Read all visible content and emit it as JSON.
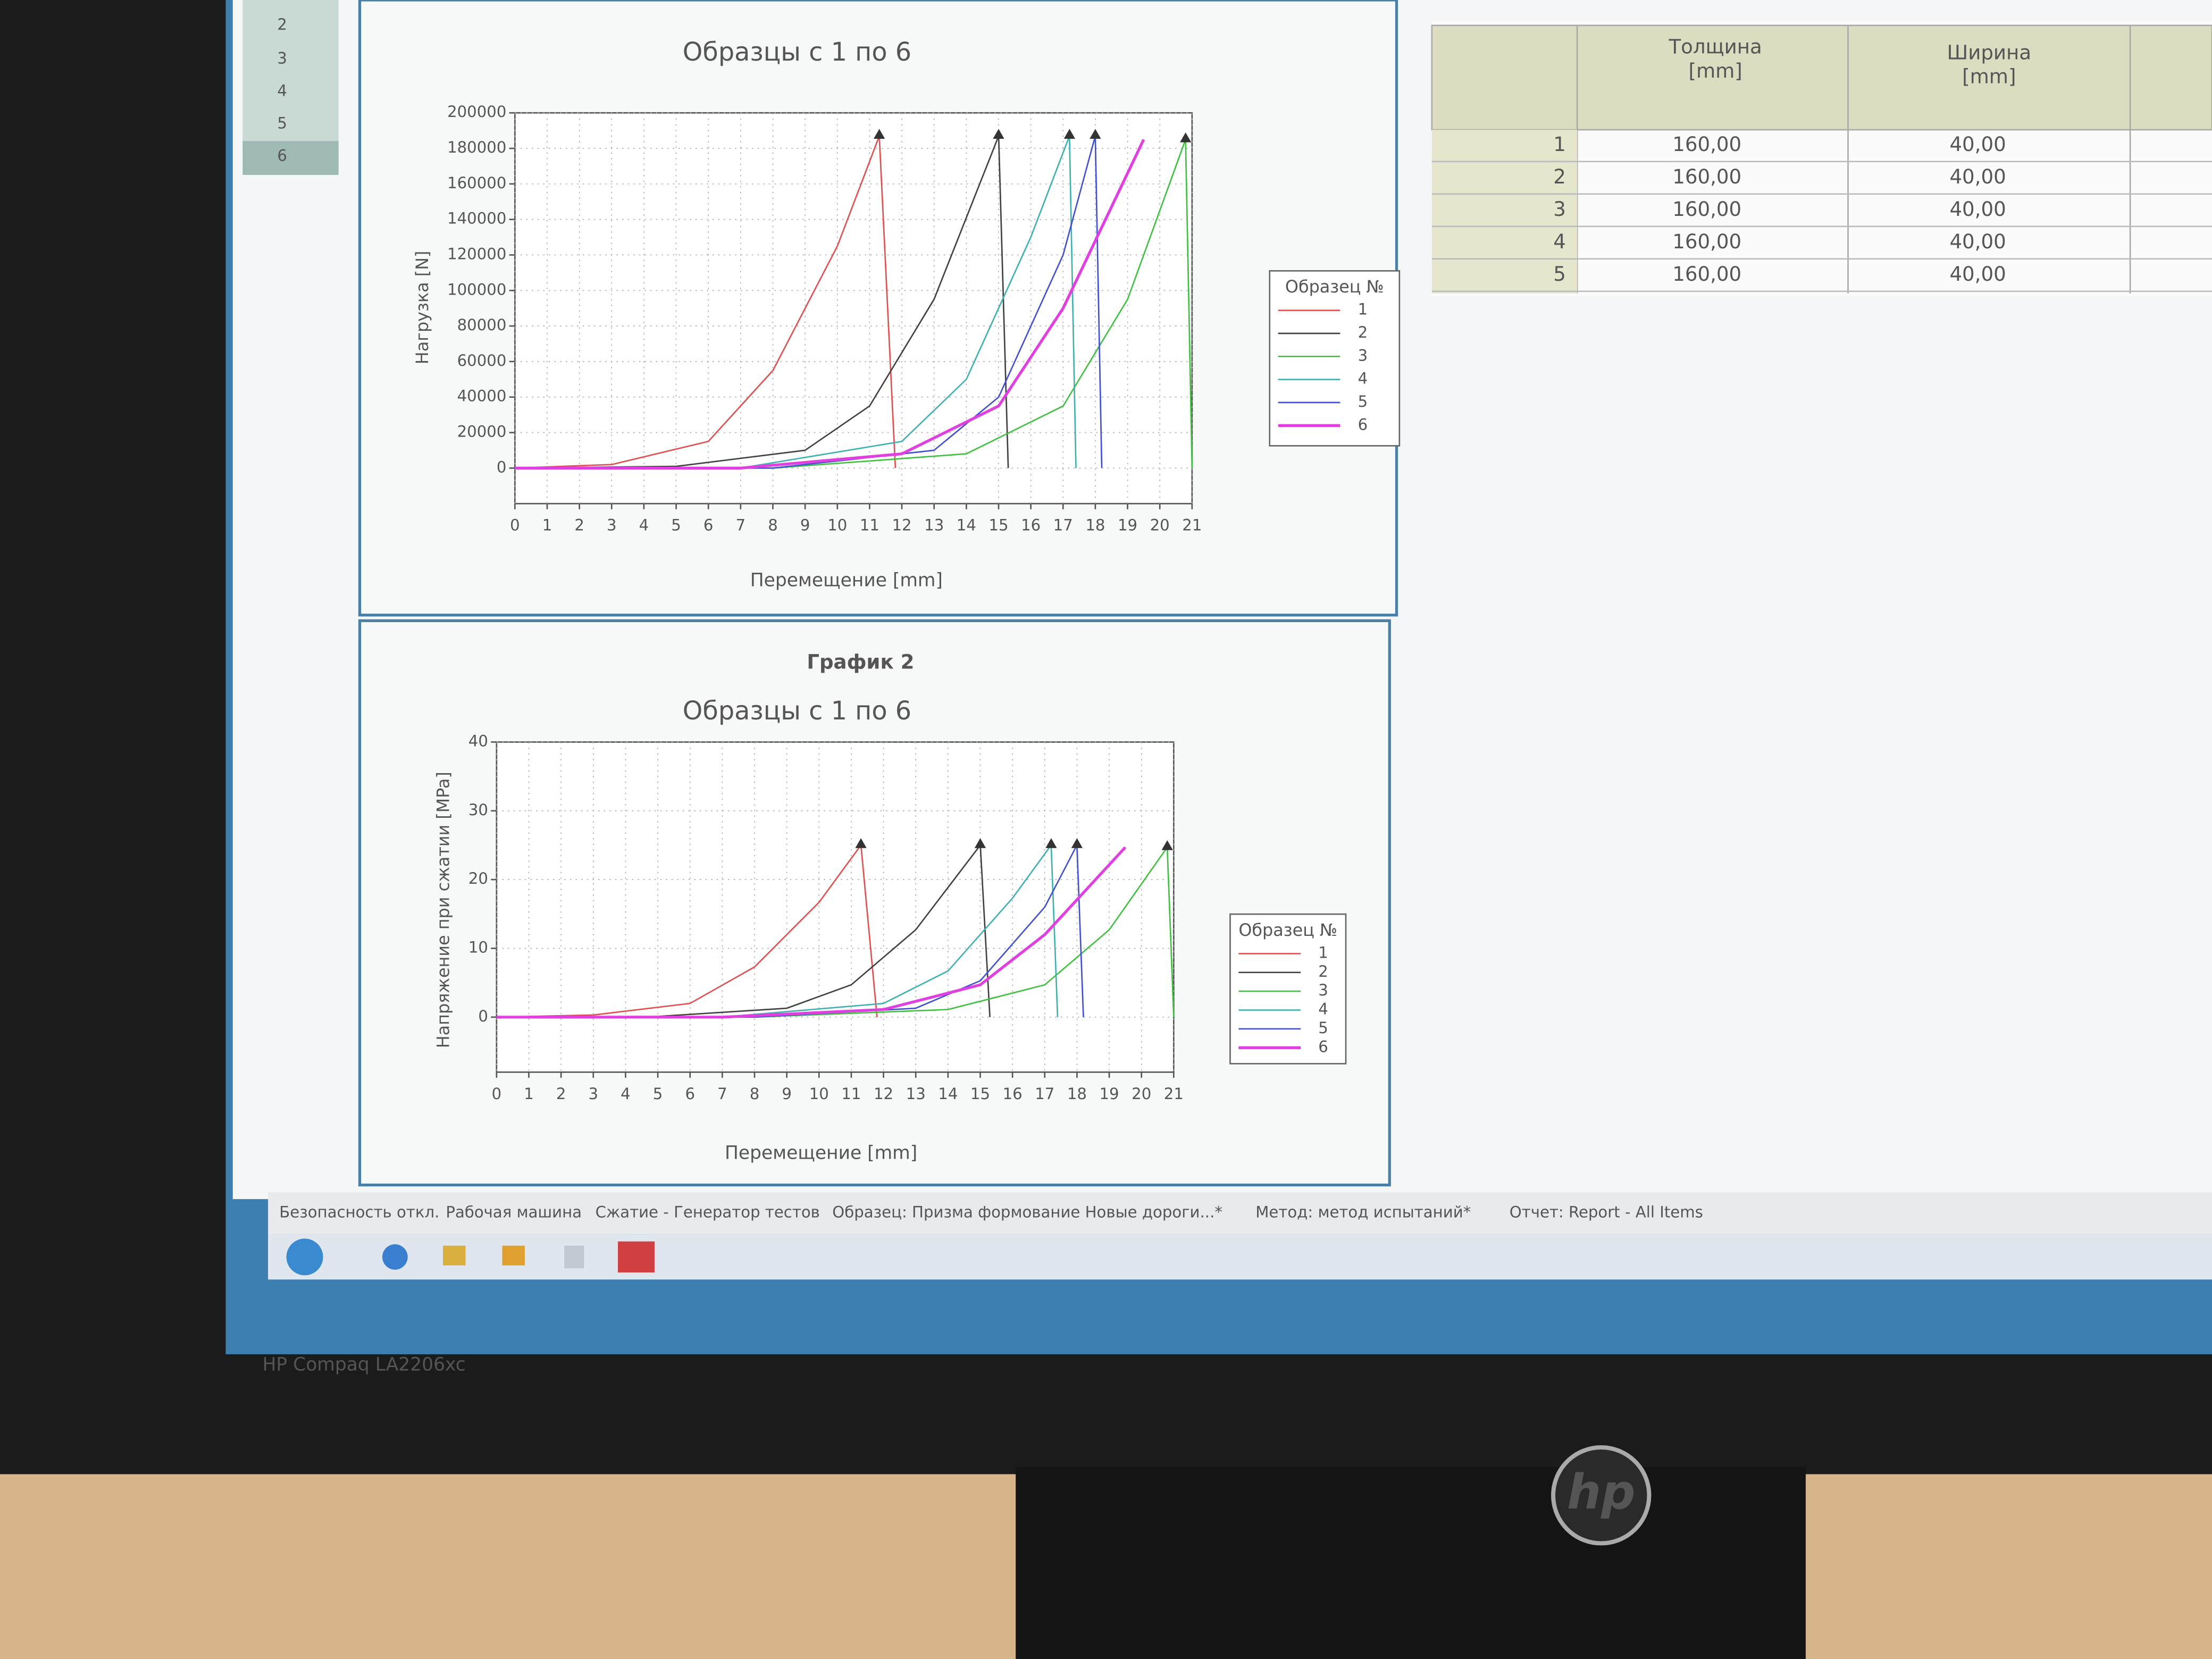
{
  "left_panel": {
    "rows": [
      "2",
      "3",
      "4",
      "5",
      "6"
    ]
  },
  "chart_data": [
    {
      "type": "line",
      "title": "Образцы с 1 по 6",
      "x_label": "Перемещение [mm]",
      "y_label": "Нагрузка [N]",
      "legend_title": "Образец №",
      "grid": true,
      "legend": "right",
      "xlim": [
        0,
        21
      ],
      "xticks": [
        0,
        1,
        2,
        3,
        4,
        5,
        6,
        7,
        8,
        9,
        10,
        11,
        12,
        13,
        14,
        15,
        16,
        17,
        18,
        19,
        20,
        21
      ],
      "ylim": [
        -20000,
        200000
      ],
      "yticks": [
        0,
        20000,
        40000,
        60000,
        80000,
        100000,
        120000,
        140000,
        160000,
        180000,
        200000
      ],
      "series": [
        {
          "name": "1",
          "color": "#e05050",
          "marker": true,
          "x": [
            0,
            3,
            6,
            8,
            10,
            11.3,
            11.8
          ],
          "values": [
            0,
            2000,
            15000,
            55000,
            125000,
            187000,
            0
          ]
        },
        {
          "name": "2",
          "color": "#404040",
          "marker": true,
          "x": [
            0,
            5,
            9,
            11,
            13,
            15,
            15.3
          ],
          "values": [
            0,
            1000,
            10000,
            35000,
            95000,
            187000,
            0
          ]
        },
        {
          "name": "3",
          "color": "#40c040",
          "marker": true,
          "x": [
            0,
            8,
            14,
            17,
            19,
            20.8,
            21
          ],
          "values": [
            0,
            0,
            8000,
            35000,
            95000,
            185000,
            0
          ]
        },
        {
          "name": "4",
          "color": "#40b0b0",
          "marker": true,
          "x": [
            0,
            7,
            12,
            14,
            16,
            17.2,
            17.4
          ],
          "values": [
            0,
            0,
            15000,
            50000,
            130000,
            187000,
            0
          ]
        },
        {
          "name": "5",
          "color": "#4050d0",
          "marker": true,
          "x": [
            0,
            8,
            13,
            15,
            17,
            18,
            18.2
          ],
          "values": [
            0,
            0,
            10000,
            40000,
            120000,
            187000,
            0
          ]
        },
        {
          "name": "6",
          "color": "#e040e0",
          "marker": false,
          "x": [
            0,
            7,
            12,
            15,
            17,
            19.5
          ],
          "values": [
            0,
            0,
            8000,
            35000,
            90000,
            185000
          ]
        }
      ]
    },
    {
      "type": "line",
      "header": "График 2",
      "title": "Образцы с 1 по 6",
      "x_label": "Перемещение [mm]",
      "y_label": "Напряжение при сжатии [MPa]",
      "legend_title": "Образец №",
      "grid": true,
      "legend": "right",
      "xlim": [
        0,
        21
      ],
      "xticks": [
        0,
        1,
        2,
        3,
        4,
        5,
        6,
        7,
        8,
        9,
        10,
        11,
        12,
        13,
        14,
        15,
        16,
        17,
        18,
        19,
        20,
        21
      ],
      "ylim": [
        -8,
        40
      ],
      "yticks": [
        0,
        10,
        20,
        30,
        40
      ],
      "series": [
        {
          "name": "1",
          "color": "#e05050",
          "marker": true,
          "x": [
            0,
            3,
            6,
            8,
            10,
            11.3,
            11.8
          ],
          "values": [
            0,
            0.3,
            2,
            7.3,
            16.7,
            25,
            0
          ]
        },
        {
          "name": "2",
          "color": "#404040",
          "marker": true,
          "x": [
            0,
            5,
            9,
            11,
            13,
            15,
            15.3
          ],
          "values": [
            0,
            0.1,
            1.3,
            4.7,
            12.7,
            25,
            0
          ]
        },
        {
          "name": "3",
          "color": "#40c040",
          "marker": true,
          "x": [
            0,
            8,
            14,
            17,
            19,
            20.8,
            21
          ],
          "values": [
            0,
            0,
            1.1,
            4.7,
            12.7,
            24.7,
            0
          ]
        },
        {
          "name": "4",
          "color": "#40b0b0",
          "marker": true,
          "x": [
            0,
            7,
            12,
            14,
            16,
            17.2,
            17.4
          ],
          "values": [
            0,
            0,
            2,
            6.7,
            17.3,
            25,
            0
          ]
        },
        {
          "name": "5",
          "color": "#4050d0",
          "marker": true,
          "x": [
            0,
            8,
            13,
            15,
            17,
            18,
            18.2
          ],
          "values": [
            0,
            0,
            1.3,
            5.3,
            16,
            25,
            0
          ]
        },
        {
          "name": "6",
          "color": "#e040e0",
          "marker": false,
          "x": [
            0,
            7,
            12,
            15,
            17,
            19.5
          ],
          "values": [
            0,
            0,
            1.1,
            4.7,
            12,
            24.7
          ]
        }
      ]
    }
  ],
  "table": {
    "columns": [
      {
        "name": "Толщина",
        "unit": "[mm]"
      },
      {
        "name": "Ширина",
        "unit": "[mm]"
      }
    ],
    "rows": [
      [
        "1",
        "160,00",
        "40,00"
      ],
      [
        "2",
        "160,00",
        "40,00"
      ],
      [
        "3",
        "160,00",
        "40,00"
      ],
      [
        "4",
        "160,00",
        "40,00"
      ],
      [
        "5",
        "160,00",
        "40,00"
      ]
    ]
  },
  "status_bar": [
    "Безопасность откл.",
    "Рабочая машина",
    "Сжатие - Генератор тестов",
    "Образец: Призма формование Новые дороги...*",
    "Метод: метод испытаний*",
    "Отчет: Report - All Items"
  ],
  "monitor": {
    "model": "HP Compaq LA2206xc",
    "logo": "hp"
  }
}
